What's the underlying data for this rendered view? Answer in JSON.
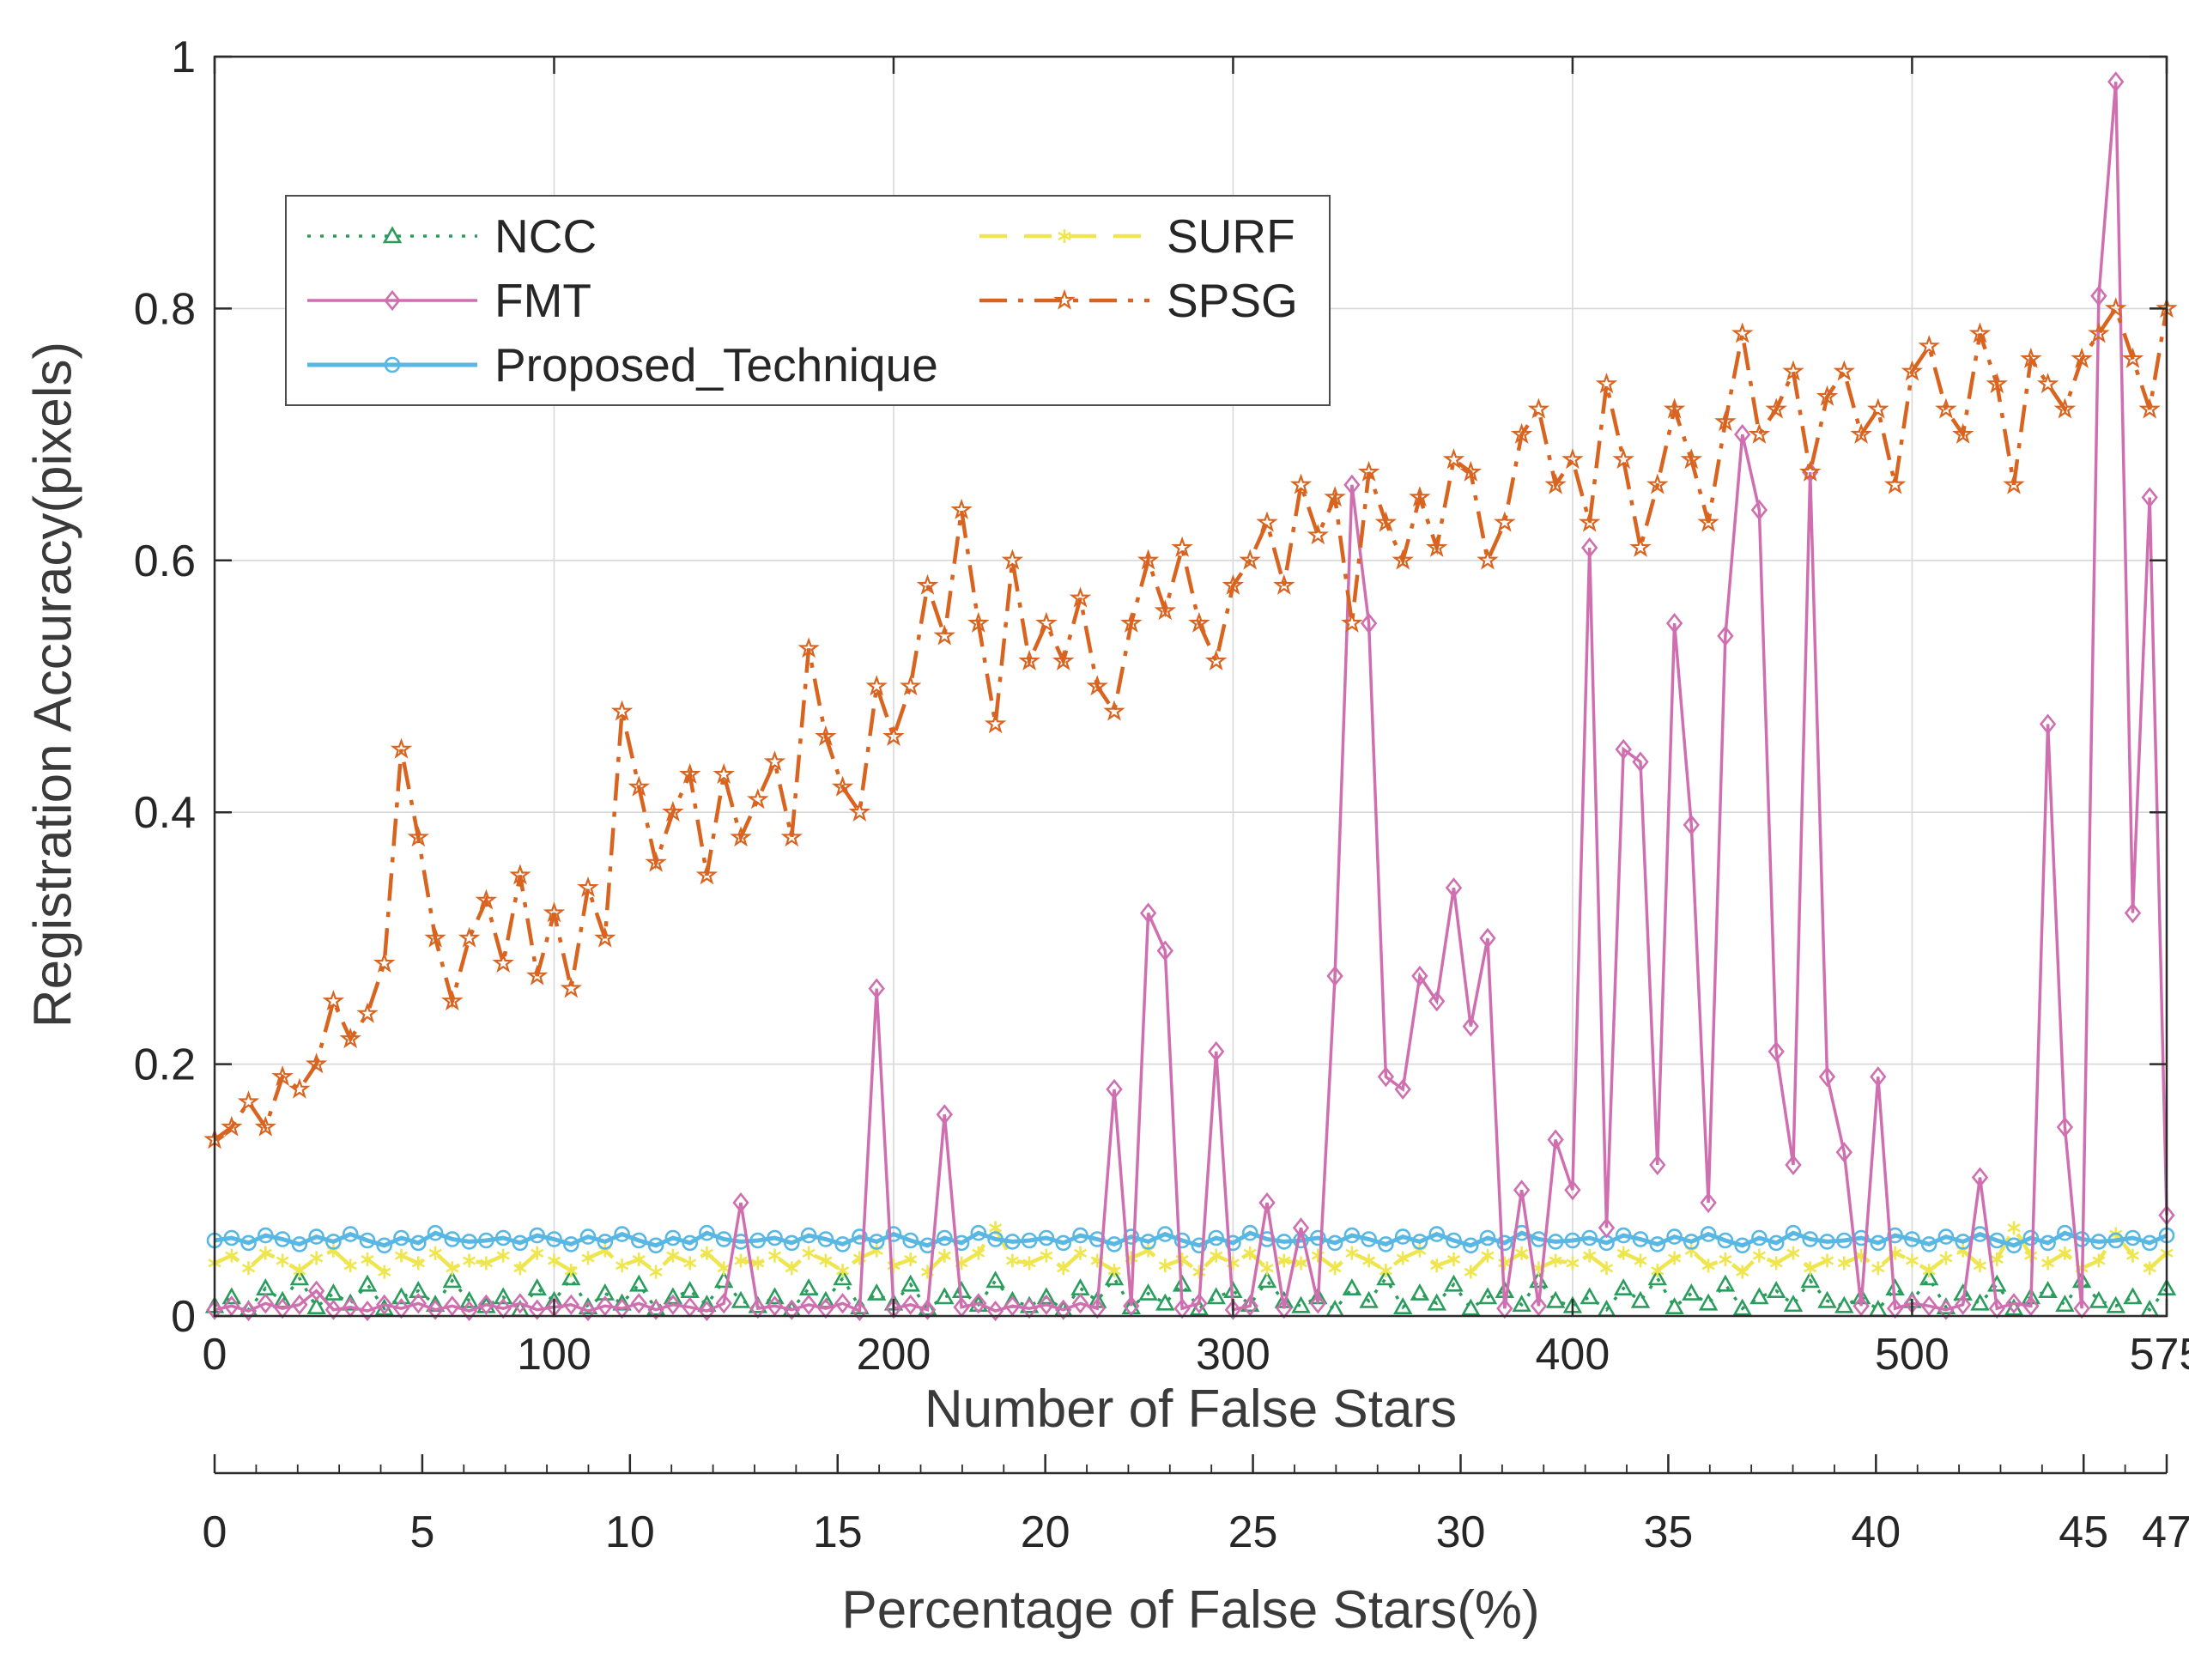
{
  "figure": {
    "background": "#ffffff",
    "axis_color": "#2b2b2b",
    "grid_color": "#d8d8d8"
  },
  "chart_data": {
    "type": "line",
    "title": "",
    "xlabel": "Number of False Stars",
    "ylabel": "Registration Accuracy(pixels)",
    "x2label": "Percentage of False Stars(%)",
    "xlim": [
      0,
      575
    ],
    "ylim": [
      0,
      1
    ],
    "x2lim": [
      0,
      47
    ],
    "x_ticks": [
      0,
      100,
      200,
      300,
      400,
      500,
      575
    ],
    "y_ticks": [
      0,
      0.2,
      0.4,
      0.6,
      0.8,
      1
    ],
    "x2_ticks": [
      0,
      5,
      10,
      15,
      20,
      25,
      30,
      35,
      40,
      45,
      47
    ],
    "grid": true,
    "legend_position": "upper-left",
    "x_start": 0,
    "x_step": 5,
    "series": [
      {
        "name": "NCC",
        "color": "#2a9d5c",
        "line": "dotted",
        "marker": "triangle",
        "width": 3.5,
        "values": [
          0.008,
          0.015,
          0.005,
          0.022,
          0.012,
          0.03,
          0.007,
          0.018,
          0.01,
          0.025,
          0.006,
          0.015,
          0.02,
          0.009,
          0.028,
          0.012,
          0.008,
          0.015,
          0.005,
          0.022,
          0.012,
          0.03,
          0.007,
          0.018,
          0.01,
          0.025,
          0.006,
          0.015,
          0.02,
          0.009,
          0.028,
          0.012,
          0.008,
          0.015,
          0.005,
          0.022,
          0.012,
          0.03,
          0.007,
          0.018,
          0.01,
          0.025,
          0.006,
          0.015,
          0.02,
          0.009,
          0.028,
          0.012,
          0.008,
          0.015,
          0.005,
          0.022,
          0.012,
          0.03,
          0.007,
          0.018,
          0.01,
          0.025,
          0.006,
          0.015,
          0.02,
          0.009,
          0.028,
          0.012,
          0.008,
          0.015,
          0.005,
          0.022,
          0.012,
          0.03,
          0.007,
          0.018,
          0.01,
          0.025,
          0.006,
          0.015,
          0.02,
          0.009,
          0.028,
          0.012,
          0.008,
          0.015,
          0.005,
          0.022,
          0.012,
          0.03,
          0.007,
          0.018,
          0.01,
          0.025,
          0.006,
          0.015,
          0.02,
          0.009,
          0.028,
          0.012,
          0.008,
          0.015,
          0.005,
          0.022,
          0.012,
          0.03,
          0.007,
          0.018,
          0.01,
          0.025,
          0.006,
          0.015,
          0.02,
          0.009,
          0.028,
          0.012,
          0.008,
          0.015,
          0.005,
          0.022
        ]
      },
      {
        "name": "FMT",
        "color": "#cf6fb0",
        "line": "solid",
        "marker": "diamond",
        "width": 3.5,
        "values": [
          0.005,
          0.008,
          0.004,
          0.01,
          0.006,
          0.009,
          0.02,
          0.005,
          0.007,
          0.004,
          0.009,
          0.006,
          0.01,
          0.005,
          0.008,
          0.004,
          0.009,
          0.006,
          0.01,
          0.005,
          0.007,
          0.009,
          0.004,
          0.008,
          0.006,
          0.01,
          0.005,
          0.009,
          0.007,
          0.004,
          0.01,
          0.09,
          0.006,
          0.008,
          0.005,
          0.009,
          0.006,
          0.01,
          0.004,
          0.26,
          0.006,
          0.009,
          0.005,
          0.16,
          0.007,
          0.01,
          0.004,
          0.008,
          0.006,
          0.009,
          0.005,
          0.01,
          0.006,
          0.18,
          0.008,
          0.32,
          0.29,
          0.006,
          0.01,
          0.21,
          0.005,
          0.008,
          0.09,
          0.006,
          0.07,
          0.01,
          0.27,
          0.66,
          0.55,
          0.19,
          0.18,
          0.27,
          0.25,
          0.34,
          0.23,
          0.3,
          0.006,
          0.1,
          0.008,
          0.14,
          0.1,
          0.61,
          0.07,
          0.45,
          0.44,
          0.12,
          0.55,
          0.39,
          0.09,
          0.54,
          0.7,
          0.64,
          0.21,
          0.12,
          0.67,
          0.19,
          0.13,
          0.008,
          0.19,
          0.006,
          0.01,
          0.008,
          0.005,
          0.009,
          0.11,
          0.006,
          0.01,
          0.008,
          0.47,
          0.15,
          0.006,
          0.81,
          0.98,
          0.32,
          0.65,
          0.08
        ]
      },
      {
        "name": "Proposed_Technique",
        "color": "#58b7e3",
        "line": "solid",
        "marker": "circle",
        "width": 5,
        "values": [
          0.06,
          0.062,
          0.058,
          0.064,
          0.061,
          0.057,
          0.063,
          0.059,
          0.065,
          0.06,
          0.056,
          0.062,
          0.058,
          0.066,
          0.061,
          0.059,
          0.06,
          0.062,
          0.058,
          0.064,
          0.061,
          0.057,
          0.063,
          0.059,
          0.065,
          0.06,
          0.056,
          0.062,
          0.058,
          0.066,
          0.061,
          0.059,
          0.06,
          0.062,
          0.058,
          0.064,
          0.061,
          0.057,
          0.063,
          0.059,
          0.065,
          0.06,
          0.056,
          0.062,
          0.058,
          0.066,
          0.061,
          0.059,
          0.06,
          0.062,
          0.058,
          0.064,
          0.061,
          0.057,
          0.063,
          0.059,
          0.065,
          0.06,
          0.056,
          0.062,
          0.058,
          0.066,
          0.061,
          0.059,
          0.06,
          0.062,
          0.058,
          0.064,
          0.061,
          0.057,
          0.063,
          0.059,
          0.065,
          0.06,
          0.056,
          0.062,
          0.058,
          0.066,
          0.061,
          0.059,
          0.06,
          0.062,
          0.058,
          0.064,
          0.061,
          0.057,
          0.063,
          0.059,
          0.065,
          0.06,
          0.056,
          0.062,
          0.058,
          0.066,
          0.061,
          0.059,
          0.06,
          0.062,
          0.058,
          0.064,
          0.061,
          0.057,
          0.063,
          0.059,
          0.065,
          0.06,
          0.056,
          0.062,
          0.058,
          0.066,
          0.061,
          0.059,
          0.06,
          0.062,
          0.058,
          0.064
        ]
      },
      {
        "name": "SURF",
        "color": "#efe64f",
        "line": "dashed",
        "marker": "asterisk",
        "width": 4.5,
        "values": [
          0.042,
          0.048,
          0.038,
          0.05,
          0.044,
          0.036,
          0.046,
          0.052,
          0.04,
          0.045,
          0.035,
          0.048,
          0.042,
          0.05,
          0.038,
          0.044,
          0.042,
          0.048,
          0.038,
          0.05,
          0.044,
          0.036,
          0.046,
          0.052,
          0.04,
          0.045,
          0.035,
          0.048,
          0.042,
          0.05,
          0.038,
          0.044,
          0.042,
          0.048,
          0.038,
          0.05,
          0.044,
          0.036,
          0.046,
          0.052,
          0.04,
          0.045,
          0.035,
          0.048,
          0.042,
          0.05,
          0.07,
          0.044,
          0.042,
          0.048,
          0.038,
          0.05,
          0.044,
          0.036,
          0.046,
          0.052,
          0.04,
          0.045,
          0.035,
          0.048,
          0.042,
          0.05,
          0.038,
          0.044,
          0.042,
          0.048,
          0.038,
          0.05,
          0.044,
          0.036,
          0.046,
          0.052,
          0.04,
          0.045,
          0.035,
          0.048,
          0.042,
          0.05,
          0.038,
          0.044,
          0.042,
          0.048,
          0.038,
          0.05,
          0.044,
          0.036,
          0.046,
          0.052,
          0.04,
          0.045,
          0.035,
          0.048,
          0.042,
          0.05,
          0.038,
          0.044,
          0.042,
          0.048,
          0.038,
          0.05,
          0.044,
          0.036,
          0.046,
          0.052,
          0.04,
          0.045,
          0.07,
          0.048,
          0.042,
          0.05,
          0.038,
          0.044,
          0.065,
          0.048,
          0.038,
          0.05
        ]
      },
      {
        "name": "SPSG",
        "color": "#d9641f",
        "line": "dashdot",
        "marker": "star",
        "width": 4.5,
        "values": [
          0.14,
          0.15,
          0.17,
          0.15,
          0.19,
          0.18,
          0.2,
          0.25,
          0.22,
          0.24,
          0.28,
          0.45,
          0.38,
          0.3,
          0.25,
          0.3,
          0.33,
          0.28,
          0.35,
          0.27,
          0.32,
          0.26,
          0.34,
          0.3,
          0.48,
          0.42,
          0.36,
          0.4,
          0.43,
          0.35,
          0.43,
          0.38,
          0.41,
          0.44,
          0.38,
          0.53,
          0.46,
          0.42,
          0.4,
          0.5,
          0.46,
          0.5,
          0.58,
          0.54,
          0.64,
          0.55,
          0.47,
          0.6,
          0.52,
          0.55,
          0.52,
          0.57,
          0.5,
          0.48,
          0.55,
          0.6,
          0.56,
          0.61,
          0.55,
          0.52,
          0.58,
          0.6,
          0.63,
          0.58,
          0.66,
          0.62,
          0.65,
          0.55,
          0.67,
          0.63,
          0.6,
          0.65,
          0.61,
          0.68,
          0.67,
          0.6,
          0.63,
          0.7,
          0.72,
          0.66,
          0.68,
          0.63,
          0.74,
          0.68,
          0.61,
          0.66,
          0.72,
          0.68,
          0.63,
          0.71,
          0.78,
          0.7,
          0.72,
          0.75,
          0.67,
          0.73,
          0.75,
          0.7,
          0.72,
          0.66,
          0.75,
          0.77,
          0.72,
          0.7,
          0.78,
          0.74,
          0.66,
          0.76,
          0.74,
          0.72,
          0.76,
          0.78,
          0.8,
          0.76,
          0.72,
          0.8
        ]
      }
    ]
  }
}
